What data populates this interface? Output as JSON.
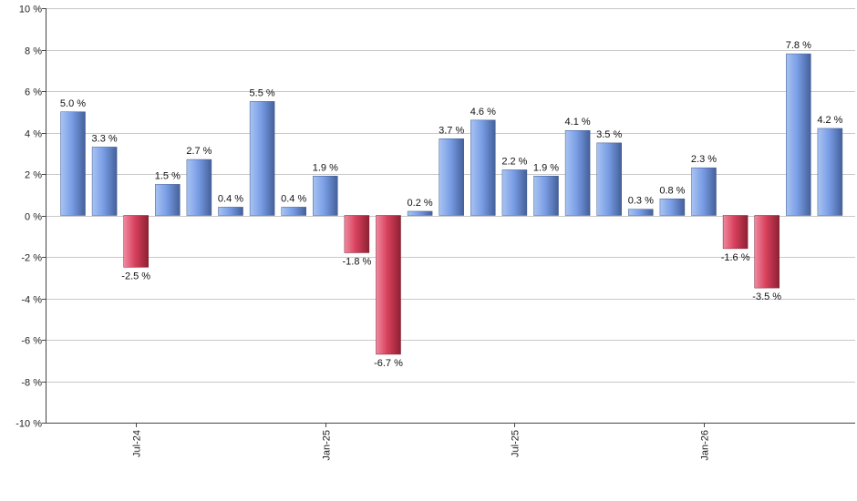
{
  "chart_data": {
    "type": "bar",
    "title": "",
    "xlabel": "",
    "ylabel": "",
    "ylim": [
      -10,
      10
    ],
    "y_ticks": [
      10,
      8,
      6,
      4,
      2,
      0,
      -2,
      -4,
      -6,
      -8,
      -10
    ],
    "y_tick_labels": [
      "10 %",
      "8 %",
      "6 %",
      "4 %",
      "2 %",
      "0 %",
      "-2 %",
      "-4 %",
      "-6 %",
      "-8 %",
      "-10 %"
    ],
    "grid": true,
    "values": [
      5.0,
      3.3,
      -2.5,
      1.5,
      2.7,
      0.4,
      5.5,
      0.4,
      1.9,
      -1.8,
      -6.7,
      0.2,
      3.7,
      4.6,
      2.2,
      1.9,
      4.1,
      3.5,
      0.3,
      0.8,
      2.3,
      -1.6,
      -3.5,
      7.8,
      4.2
    ],
    "value_labels": [
      "5.0 %",
      "3.3 %",
      "-2.5 %",
      "1.5 %",
      "2.7 %",
      "0.4 %",
      "5.5 %",
      "0.4 %",
      "1.9 %",
      "-1.8 %",
      "-6.7 %",
      "0.2 %",
      "3.7 %",
      "4.6 %",
      "2.2 %",
      "1.9 %",
      "4.1 %",
      "3.5 %",
      "0.3 %",
      "0.8 %",
      "2.3 %",
      "-1.6 %",
      "-3.5 %",
      "7.8 %",
      "4.2 %"
    ],
    "x_tick_labels": [
      {
        "index": 2,
        "label": "Jul-24"
      },
      {
        "index": 8,
        "label": "Jan-25"
      },
      {
        "index": 14,
        "label": "Jul-25"
      },
      {
        "index": 20,
        "label": "Jan-26"
      }
    ],
    "colors": {
      "positive_light": "#a9c4f2",
      "positive_mid": "#7a9ee6",
      "positive_dark": "#44609a",
      "negative_light": "#f08aa0",
      "negative_mid": "#d8415d",
      "negative_dark": "#8e2033"
    }
  }
}
